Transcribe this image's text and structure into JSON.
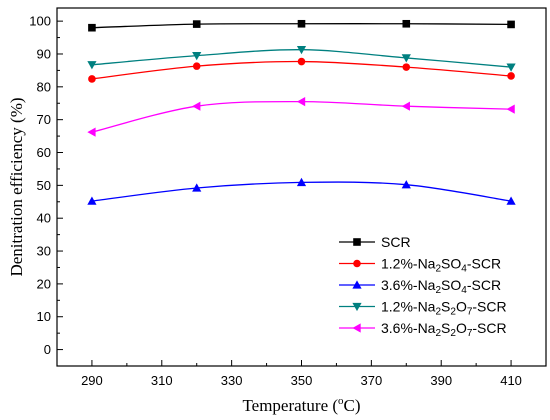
{
  "chart_data": {
    "type": "line",
    "xlabel_main": "Temperature (",
    "xlabel_sup": "o",
    "xlabel_tail": "C)",
    "ylabel": "Denitration efficiency (%)",
    "xlim": [
      280,
      420
    ],
    "ylim": [
      -5,
      104
    ],
    "x_ticks": [
      290,
      310,
      330,
      350,
      370,
      390,
      410
    ],
    "y_ticks": [
      0,
      10,
      20,
      30,
      40,
      50,
      60,
      70,
      80,
      90,
      100
    ],
    "x": [
      290,
      320,
      350,
      380,
      410
    ],
    "grid": false,
    "legend_position": "lower-right",
    "series": [
      {
        "name_parts": [
          [
            "SCR",
            ""
          ]
        ],
        "color": "#000000",
        "marker": "square",
        "values": [
          98.0,
          99.1,
          99.2,
          99.2,
          99.0
        ]
      },
      {
        "name_parts": [
          [
            "1.2%-Na",
            ""
          ],
          [
            "2",
            "sub"
          ],
          [
            "SO",
            ""
          ],
          [
            "4",
            "sub"
          ],
          [
            "-SCR",
            ""
          ]
        ],
        "color": "#ff0000",
        "marker": "circle",
        "values": [
          82.4,
          86.3,
          87.7,
          86.0,
          83.3
        ]
      },
      {
        "name_parts": [
          [
            "3.6%-Na",
            ""
          ],
          [
            "2",
            "sub"
          ],
          [
            "SO",
            ""
          ],
          [
            "4",
            "sub"
          ],
          [
            "-SCR",
            ""
          ]
        ],
        "color": "#0000ff",
        "marker": "triangle-up",
        "values": [
          45.2,
          49.2,
          50.9,
          50.2,
          45.2
        ]
      },
      {
        "name_parts": [
          [
            "1.2%-Na",
            ""
          ],
          [
            "2",
            "sub"
          ],
          [
            "S",
            ""
          ],
          [
            "2",
            "sub"
          ],
          [
            "O",
            ""
          ],
          [
            "7",
            "sub"
          ],
          [
            "-SCR",
            ""
          ]
        ],
        "color": "#008080",
        "marker": "triangle-down",
        "values": [
          86.7,
          89.5,
          91.3,
          88.8,
          86.0
        ]
      },
      {
        "name_parts": [
          [
            "3.6%-Na",
            ""
          ],
          [
            "2",
            "sub"
          ],
          [
            "S",
            ""
          ],
          [
            "2",
            "sub"
          ],
          [
            "O",
            ""
          ],
          [
            "7",
            "sub"
          ],
          [
            "-SCR",
            ""
          ]
        ],
        "color": "#ff00ff",
        "marker": "triangle-left",
        "values": [
          66.2,
          74.1,
          75.5,
          74.1,
          73.2
        ]
      }
    ]
  }
}
